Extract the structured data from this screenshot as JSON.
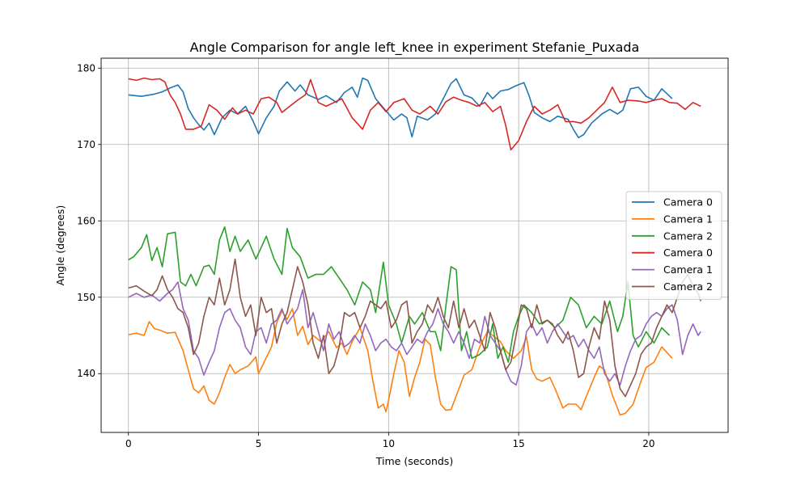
{
  "chart_data": {
    "type": "line",
    "title": "Angle Comparison for angle left_knee in experiment Stefanie_Puxada",
    "xlabel": "Time (seconds)",
    "ylabel": "Angle (degrees)",
    "xlim": [
      -1.05,
      23.05
    ],
    "ylim": [
      132.3,
      181.3
    ],
    "xticks": [
      0,
      5,
      10,
      15,
      20
    ],
    "yticks": [
      140,
      150,
      160,
      170,
      180
    ],
    "grid": true,
    "legend_position": "center-right",
    "series": [
      {
        "name": "Camera 0",
        "color": "#1f77b4",
        "x": [
          0,
          0.5,
          1.0,
          1.3,
          1.6,
          1.9,
          2.1,
          2.3,
          2.5,
          2.7,
          2.9,
          3.1,
          3.3,
          3.6,
          3.9,
          4.2,
          4.5,
          4.8,
          5.0,
          5.3,
          5.6,
          5.8,
          6.1,
          6.4,
          6.6,
          6.9,
          7.3,
          7.6,
          8.0,
          8.3,
          8.6,
          8.8,
          9.0,
          9.2,
          9.5,
          9.8,
          10.2,
          10.5,
          10.7,
          10.9,
          11.1,
          11.5,
          11.8,
          12.1,
          12.4,
          12.6,
          12.9,
          13.2,
          13.5,
          13.8,
          14.0,
          14.3,
          14.6,
          14.9,
          15.2,
          15.4,
          15.6,
          15.9,
          16.2,
          16.5,
          16.9,
          17.1,
          17.3,
          17.5,
          17.8,
          18.2,
          18.5,
          18.8,
          19.0,
          19.3,
          19.6,
          19.9,
          20.2,
          20.5,
          20.9
        ],
        "y": [
          176.5,
          176.3,
          176.6,
          176.9,
          177.4,
          177.8,
          176.9,
          174.7,
          173.5,
          172.6,
          171.9,
          172.8,
          171.3,
          173.5,
          174.5,
          174.0,
          175.0,
          173.0,
          171.4,
          173.5,
          175.0,
          177.0,
          178.2,
          177.0,
          177.8,
          176.5,
          175.9,
          176.4,
          175.5,
          176.8,
          177.5,
          176.2,
          178.7,
          178.4,
          176.0,
          174.8,
          173.2,
          174.0,
          173.5,
          171.0,
          173.7,
          173.2,
          174.0,
          176.0,
          178.0,
          178.6,
          176.5,
          176.1,
          175.0,
          176.8,
          176.0,
          177.0,
          177.2,
          177.7,
          178.1,
          176.4,
          174.2,
          173.5,
          173.0,
          173.7,
          173.3,
          172.0,
          170.9,
          171.3,
          172.8,
          174.0,
          174.6,
          174.0,
          174.5,
          177.3,
          177.5,
          176.3,
          175.8,
          177.3,
          176.0
        ]
      },
      {
        "name": "Camera 1",
        "color": "#ff7f0e",
        "x": [
          0,
          0.3,
          0.6,
          0.8,
          1.0,
          1.2,
          1.5,
          1.8,
          2.1,
          2.3,
          2.5,
          2.7,
          2.9,
          3.1,
          3.3,
          3.5,
          3.7,
          3.9,
          4.1,
          4.3,
          4.6,
          4.9,
          5.0,
          5.2,
          5.5,
          5.7,
          5.9,
          6.1,
          6.3,
          6.5,
          6.7,
          6.9,
          7.1,
          7.4,
          7.7,
          8.0,
          8.2,
          8.4,
          8.6,
          8.9,
          9.2,
          9.4,
          9.6,
          9.8,
          9.9,
          10.0,
          10.2,
          10.4,
          10.6,
          10.8,
          11.0,
          11.2,
          11.4,
          11.6,
          11.8,
          12.0,
          12.2,
          12.4,
          12.7,
          12.9,
          13.2,
          13.5,
          13.8,
          14.0,
          14.3,
          14.5,
          14.8,
          15.1,
          15.3,
          15.5,
          15.7,
          15.9,
          16.2,
          16.4,
          16.7,
          16.9,
          17.2,
          17.4,
          17.6,
          17.9,
          18.1,
          18.3,
          18.6,
          18.9,
          19.1,
          19.4,
          19.7,
          19.9,
          20.2,
          20.5,
          20.9
        ],
        "y": [
          145.1,
          145.3,
          145.0,
          146.8,
          145.9,
          145.7,
          145.3,
          145.4,
          143.0,
          140.5,
          138.0,
          137.5,
          138.4,
          136.5,
          136.0,
          137.5,
          139.5,
          141.2,
          140.0,
          140.5,
          141.0,
          142.2,
          140.0,
          141.4,
          143.5,
          146.7,
          148.2,
          147.1,
          148.5,
          145.0,
          146.2,
          143.8,
          145.0,
          144.2,
          145.5,
          143.4,
          144.0,
          142.5,
          144.2,
          146.0,
          143.0,
          139.0,
          135.5,
          136.0,
          135.0,
          136.5,
          140.0,
          143.0,
          141.5,
          137.0,
          139.5,
          141.5,
          144.5,
          143.8,
          139.5,
          136.0,
          135.2,
          135.3,
          138.0,
          139.8,
          140.5,
          143.5,
          145.5,
          145.0,
          144.2,
          143.0,
          142.0,
          143.0,
          144.8,
          140.5,
          139.3,
          139.0,
          139.5,
          138.0,
          135.5,
          136.0,
          136.0,
          135.3,
          137.0,
          139.5,
          141.0,
          140.5,
          137.2,
          134.6,
          134.8,
          136.0,
          139.0,
          140.8,
          141.5,
          143.5,
          142.0
        ]
      },
      {
        "name": "Camera 2",
        "color": "#2ca02c",
        "x": [
          0,
          0.2,
          0.5,
          0.7,
          0.9,
          1.1,
          1.3,
          1.5,
          1.8,
          2.0,
          2.2,
          2.4,
          2.6,
          2.9,
          3.1,
          3.3,
          3.5,
          3.7,
          3.9,
          4.1,
          4.3,
          4.6,
          4.9,
          5.1,
          5.3,
          5.6,
          5.9,
          6.1,
          6.3,
          6.6,
          6.9,
          7.2,
          7.5,
          7.8,
          8.1,
          8.4,
          8.7,
          9.0,
          9.3,
          9.5,
          9.8,
          10.0,
          10.3,
          10.5,
          10.8,
          11.0,
          11.3,
          11.6,
          11.8,
          12.0,
          12.2,
          12.4,
          12.6,
          12.8,
          13.0,
          13.2,
          13.5,
          13.8,
          14.0,
          14.2,
          14.4,
          14.6,
          14.8,
          15.0,
          15.2,
          15.5,
          15.8,
          16.1,
          16.4,
          16.7,
          17.0,
          17.3,
          17.6,
          17.9,
          18.2,
          18.5,
          18.8,
          19.0,
          19.2,
          19.4,
          19.6,
          19.9,
          20.2,
          20.5,
          20.8
        ],
        "y": [
          154.9,
          155.3,
          156.5,
          158.2,
          154.8,
          156.5,
          154.0,
          158.3,
          158.5,
          152.0,
          151.5,
          153.0,
          151.5,
          154.0,
          154.2,
          153.0,
          157.5,
          159.2,
          156.0,
          158.0,
          156.0,
          157.5,
          155.0,
          156.5,
          158.0,
          155.0,
          153.0,
          159.0,
          156.5,
          155.3,
          152.5,
          153.0,
          153.0,
          154.0,
          152.5,
          151.0,
          149.0,
          152.0,
          151.0,
          148.0,
          154.6,
          149.0,
          146.5,
          144.0,
          147.5,
          146.5,
          148.0,
          145.5,
          145.5,
          143.0,
          148.8,
          154.0,
          153.6,
          143.0,
          145.5,
          142.0,
          142.5,
          143.5,
          146.5,
          142.0,
          143.5,
          141.5,
          145.5,
          147.5,
          149.0,
          148.0,
          146.5,
          147.0,
          146.0,
          147.0,
          150.0,
          149.0,
          146.0,
          147.5,
          146.5,
          149.5,
          145.5,
          147.5,
          152.0,
          145.0,
          143.5,
          145.5,
          144.0,
          146.0,
          145.0
        ]
      },
      {
        "name": "Camera 0",
        "color": "#d62728",
        "x": [
          0,
          0.3,
          0.6,
          0.9,
          1.2,
          1.4,
          1.6,
          1.8,
          2.0,
          2.2,
          2.5,
          2.8,
          3.1,
          3.4,
          3.7,
          4.0,
          4.2,
          4.5,
          4.8,
          5.1,
          5.4,
          5.7,
          5.9,
          6.2,
          6.5,
          6.8,
          7.0,
          7.3,
          7.6,
          7.9,
          8.2,
          8.6,
          9.0,
          9.3,
          9.6,
          9.9,
          10.2,
          10.6,
          10.9,
          11.2,
          11.6,
          11.9,
          12.2,
          12.5,
          12.8,
          13.1,
          13.4,
          13.7,
          14.0,
          14.3,
          14.5,
          14.7,
          15.0,
          15.3,
          15.6,
          15.9,
          16.2,
          16.5,
          16.8,
          17.1,
          17.4,
          17.7,
          18.0,
          18.3,
          18.6,
          18.9,
          19.2,
          19.6,
          19.9,
          20.2,
          20.5,
          20.8,
          21.1,
          21.4,
          21.7,
          22.0
        ],
        "y": [
          178.6,
          178.4,
          178.7,
          178.5,
          178.6,
          178.2,
          176.5,
          175.5,
          174.0,
          172.0,
          172.0,
          172.4,
          175.2,
          174.5,
          173.3,
          174.8,
          174.0,
          174.5,
          174.0,
          176.0,
          176.2,
          175.5,
          174.2,
          175.0,
          175.8,
          176.5,
          178.5,
          175.5,
          175.0,
          175.5,
          176.0,
          173.5,
          172.0,
          174.5,
          175.5,
          174.3,
          175.5,
          176.0,
          174.5,
          174.0,
          175.0,
          174.0,
          175.6,
          176.2,
          175.8,
          175.5,
          175.0,
          175.5,
          174.3,
          175.0,
          172.5,
          169.3,
          170.5,
          173.0,
          175.0,
          174.0,
          174.5,
          175.2,
          173.0,
          173.0,
          172.8,
          173.5,
          174.5,
          175.5,
          177.5,
          175.5,
          175.8,
          175.7,
          175.5,
          175.8,
          176.0,
          175.5,
          175.4,
          174.6,
          175.5,
          175.0
        ]
      },
      {
        "name": "Camera 1",
        "color": "#9467bd",
        "x": [
          0,
          0.3,
          0.6,
          0.9,
          1.2,
          1.5,
          1.7,
          1.9,
          2.1,
          2.3,
          2.5,
          2.7,
          2.9,
          3.1,
          3.3,
          3.5,
          3.7,
          3.9,
          4.1,
          4.3,
          4.5,
          4.7,
          4.9,
          5.1,
          5.3,
          5.5,
          5.7,
          5.9,
          6.1,
          6.3,
          6.5,
          6.7,
          6.9,
          7.1,
          7.3,
          7.5,
          7.7,
          7.9,
          8.1,
          8.3,
          8.5,
          8.7,
          8.9,
          9.1,
          9.3,
          9.5,
          9.7,
          9.9,
          10.1,
          10.3,
          10.5,
          10.7,
          10.9,
          11.1,
          11.3,
          11.5,
          11.7,
          11.9,
          12.1,
          12.3,
          12.5,
          12.7,
          12.9,
          13.1,
          13.3,
          13.5,
          13.7,
          13.9,
          14.1,
          14.3,
          14.5,
          14.7,
          14.9,
          15.1,
          15.3,
          15.5,
          15.7,
          15.9,
          16.1,
          16.3,
          16.5,
          16.7,
          16.9,
          17.1,
          17.3,
          17.5,
          17.7,
          17.9,
          18.1,
          18.3,
          18.5,
          18.7,
          18.9,
          19.1,
          19.3,
          19.5,
          19.7,
          19.9,
          20.1,
          20.3,
          20.5,
          20.7,
          20.9,
          21.1,
          21.3,
          21.5,
          21.7,
          21.9,
          22.0
        ],
        "y": [
          150.0,
          150.5,
          150.0,
          150.3,
          149.5,
          150.5,
          151.0,
          152.0,
          148.5,
          147.0,
          143.0,
          142.0,
          139.8,
          141.5,
          143.0,
          146.0,
          148.0,
          148.5,
          147.0,
          146.0,
          143.5,
          142.5,
          145.5,
          146.0,
          144.0,
          146.5,
          147.0,
          148.5,
          146.5,
          147.5,
          148.5,
          151.0,
          146.0,
          148.0,
          145.5,
          143.0,
          146.5,
          144.5,
          145.5,
          143.5,
          144.0,
          145.0,
          144.0,
          146.5,
          145.0,
          143.0,
          144.0,
          144.5,
          143.5,
          143.0,
          144.0,
          142.5,
          143.5,
          144.5,
          144.0,
          145.5,
          146.5,
          148.5,
          146.5,
          145.5,
          144.0,
          145.5,
          144.0,
          142.0,
          144.5,
          144.0,
          147.5,
          145.0,
          144.0,
          143.0,
          140.5,
          139.0,
          138.5,
          141.0,
          145.5,
          146.5,
          145.0,
          146.0,
          144.0,
          145.5,
          146.5,
          145.5,
          144.5,
          145.0,
          143.5,
          144.5,
          143.0,
          142.0,
          143.5,
          140.0,
          139.0,
          140.0,
          138.5,
          141.0,
          143.0,
          144.5,
          145.0,
          146.5,
          147.5,
          148.0,
          147.5,
          148.5,
          149.0,
          147.0,
          142.5,
          145.0,
          146.5,
          145.0,
          145.5
        ]
      },
      {
        "name": "Camera 2",
        "color": "#8c564b",
        "x": [
          0,
          0.3,
          0.6,
          0.9,
          1.1,
          1.3,
          1.5,
          1.7,
          1.9,
          2.1,
          2.3,
          2.5,
          2.7,
          2.9,
          3.1,
          3.3,
          3.5,
          3.7,
          3.9,
          4.1,
          4.3,
          4.5,
          4.7,
          4.9,
          5.1,
          5.3,
          5.5,
          5.7,
          5.9,
          6.1,
          6.3,
          6.5,
          6.7,
          6.9,
          7.1,
          7.3,
          7.5,
          7.7,
          7.9,
          8.1,
          8.3,
          8.5,
          8.7,
          8.9,
          9.1,
          9.3,
          9.5,
          9.7,
          9.9,
          10.1,
          10.3,
          10.5,
          10.7,
          10.9,
          11.1,
          11.3,
          11.5,
          11.7,
          11.9,
          12.1,
          12.3,
          12.5,
          12.7,
          12.9,
          13.1,
          13.3,
          13.5,
          13.7,
          13.9,
          14.1,
          14.3,
          14.5,
          14.7,
          14.9,
          15.1,
          15.3,
          15.5,
          15.7,
          15.9,
          16.1,
          16.3,
          16.5,
          16.7,
          16.9,
          17.1,
          17.3,
          17.5,
          17.7,
          17.9,
          18.1,
          18.3,
          18.5,
          18.7,
          18.9,
          19.1,
          19.3,
          19.5,
          19.7,
          19.9,
          20.1,
          20.3,
          20.5,
          20.7,
          20.9,
          21.1,
          21.3,
          21.5,
          21.7,
          21.9,
          22.0
        ],
        "y": [
          151.2,
          151.5,
          150.8,
          150.2,
          151.0,
          152.8,
          151.0,
          150.0,
          148.5,
          148.0,
          146.0,
          142.5,
          144.0,
          147.5,
          150.0,
          149.0,
          152.5,
          149.0,
          151.0,
          155.0,
          150.0,
          147.5,
          149.0,
          145.0,
          150.0,
          148.0,
          148.5,
          144.0,
          146.5,
          148.0,
          151.0,
          154.0,
          152.0,
          149.0,
          144.0,
          142.0,
          145.0,
          140.0,
          141.0,
          143.5,
          148.0,
          147.5,
          148.0,
          146.0,
          147.5,
          149.5,
          149.0,
          148.5,
          149.5,
          146.0,
          147.0,
          149.0,
          149.5,
          144.0,
          145.5,
          146.5,
          149.0,
          148.0,
          150.0,
          147.5,
          146.0,
          149.5,
          146.0,
          148.5,
          146.0,
          147.0,
          145.0,
          143.0,
          148.0,
          146.0,
          143.0,
          140.5,
          141.5,
          145.0,
          149.0,
          148.5,
          146.0,
          149.0,
          146.5,
          147.0,
          146.5,
          145.0,
          144.0,
          145.5,
          143.0,
          139.5,
          140.0,
          143.5,
          146.0,
          144.5,
          149.5,
          147.0,
          141.0,
          138.0,
          137.0,
          138.5,
          140.0,
          142.5,
          143.5,
          144.0,
          146.0,
          147.5,
          149.0,
          148.0,
          150.0,
          152.0,
          153.0,
          151.5,
          150.5,
          149.5
        ]
      }
    ]
  }
}
